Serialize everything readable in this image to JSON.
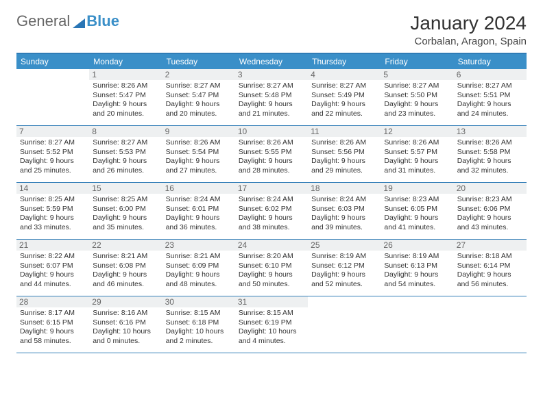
{
  "logo": {
    "text1": "General",
    "text2": "Blue"
  },
  "title": "January 2024",
  "subtitle": "Corbalan, Aragon, Spain",
  "colors": {
    "header_bg": "#3a8fc8",
    "header_text": "#ffffff",
    "border": "#2f7cb6",
    "daynum_bg": "#eef0f1",
    "daynum_text": "#666666",
    "body_text": "#333333",
    "logo_general": "#666666",
    "logo_blue": "#3a8fc8"
  },
  "day_labels": [
    "Sunday",
    "Monday",
    "Tuesday",
    "Wednesday",
    "Thursday",
    "Friday",
    "Saturday"
  ],
  "weeks": [
    [
      null,
      {
        "n": "1",
        "sr": "Sunrise: 8:26 AM",
        "ss": "Sunset: 5:47 PM",
        "d1": "Daylight: 9 hours",
        "d2": "and 20 minutes."
      },
      {
        "n": "2",
        "sr": "Sunrise: 8:27 AM",
        "ss": "Sunset: 5:47 PM",
        "d1": "Daylight: 9 hours",
        "d2": "and 20 minutes."
      },
      {
        "n": "3",
        "sr": "Sunrise: 8:27 AM",
        "ss": "Sunset: 5:48 PM",
        "d1": "Daylight: 9 hours",
        "d2": "and 21 minutes."
      },
      {
        "n": "4",
        "sr": "Sunrise: 8:27 AM",
        "ss": "Sunset: 5:49 PM",
        "d1": "Daylight: 9 hours",
        "d2": "and 22 minutes."
      },
      {
        "n": "5",
        "sr": "Sunrise: 8:27 AM",
        "ss": "Sunset: 5:50 PM",
        "d1": "Daylight: 9 hours",
        "d2": "and 23 minutes."
      },
      {
        "n": "6",
        "sr": "Sunrise: 8:27 AM",
        "ss": "Sunset: 5:51 PM",
        "d1": "Daylight: 9 hours",
        "d2": "and 24 minutes."
      }
    ],
    [
      {
        "n": "7",
        "sr": "Sunrise: 8:27 AM",
        "ss": "Sunset: 5:52 PM",
        "d1": "Daylight: 9 hours",
        "d2": "and 25 minutes."
      },
      {
        "n": "8",
        "sr": "Sunrise: 8:27 AM",
        "ss": "Sunset: 5:53 PM",
        "d1": "Daylight: 9 hours",
        "d2": "and 26 minutes."
      },
      {
        "n": "9",
        "sr": "Sunrise: 8:26 AM",
        "ss": "Sunset: 5:54 PM",
        "d1": "Daylight: 9 hours",
        "d2": "and 27 minutes."
      },
      {
        "n": "10",
        "sr": "Sunrise: 8:26 AM",
        "ss": "Sunset: 5:55 PM",
        "d1": "Daylight: 9 hours",
        "d2": "and 28 minutes."
      },
      {
        "n": "11",
        "sr": "Sunrise: 8:26 AM",
        "ss": "Sunset: 5:56 PM",
        "d1": "Daylight: 9 hours",
        "d2": "and 29 minutes."
      },
      {
        "n": "12",
        "sr": "Sunrise: 8:26 AM",
        "ss": "Sunset: 5:57 PM",
        "d1": "Daylight: 9 hours",
        "d2": "and 31 minutes."
      },
      {
        "n": "13",
        "sr": "Sunrise: 8:26 AM",
        "ss": "Sunset: 5:58 PM",
        "d1": "Daylight: 9 hours",
        "d2": "and 32 minutes."
      }
    ],
    [
      {
        "n": "14",
        "sr": "Sunrise: 8:25 AM",
        "ss": "Sunset: 5:59 PM",
        "d1": "Daylight: 9 hours",
        "d2": "and 33 minutes."
      },
      {
        "n": "15",
        "sr": "Sunrise: 8:25 AM",
        "ss": "Sunset: 6:00 PM",
        "d1": "Daylight: 9 hours",
        "d2": "and 35 minutes."
      },
      {
        "n": "16",
        "sr": "Sunrise: 8:24 AM",
        "ss": "Sunset: 6:01 PM",
        "d1": "Daylight: 9 hours",
        "d2": "and 36 minutes."
      },
      {
        "n": "17",
        "sr": "Sunrise: 8:24 AM",
        "ss": "Sunset: 6:02 PM",
        "d1": "Daylight: 9 hours",
        "d2": "and 38 minutes."
      },
      {
        "n": "18",
        "sr": "Sunrise: 8:24 AM",
        "ss": "Sunset: 6:03 PM",
        "d1": "Daylight: 9 hours",
        "d2": "and 39 minutes."
      },
      {
        "n": "19",
        "sr": "Sunrise: 8:23 AM",
        "ss": "Sunset: 6:05 PM",
        "d1": "Daylight: 9 hours",
        "d2": "and 41 minutes."
      },
      {
        "n": "20",
        "sr": "Sunrise: 8:23 AM",
        "ss": "Sunset: 6:06 PM",
        "d1": "Daylight: 9 hours",
        "d2": "and 43 minutes."
      }
    ],
    [
      {
        "n": "21",
        "sr": "Sunrise: 8:22 AM",
        "ss": "Sunset: 6:07 PM",
        "d1": "Daylight: 9 hours",
        "d2": "and 44 minutes."
      },
      {
        "n": "22",
        "sr": "Sunrise: 8:21 AM",
        "ss": "Sunset: 6:08 PM",
        "d1": "Daylight: 9 hours",
        "d2": "and 46 minutes."
      },
      {
        "n": "23",
        "sr": "Sunrise: 8:21 AM",
        "ss": "Sunset: 6:09 PM",
        "d1": "Daylight: 9 hours",
        "d2": "and 48 minutes."
      },
      {
        "n": "24",
        "sr": "Sunrise: 8:20 AM",
        "ss": "Sunset: 6:10 PM",
        "d1": "Daylight: 9 hours",
        "d2": "and 50 minutes."
      },
      {
        "n": "25",
        "sr": "Sunrise: 8:19 AM",
        "ss": "Sunset: 6:12 PM",
        "d1": "Daylight: 9 hours",
        "d2": "and 52 minutes."
      },
      {
        "n": "26",
        "sr": "Sunrise: 8:19 AM",
        "ss": "Sunset: 6:13 PM",
        "d1": "Daylight: 9 hours",
        "d2": "and 54 minutes."
      },
      {
        "n": "27",
        "sr": "Sunrise: 8:18 AM",
        "ss": "Sunset: 6:14 PM",
        "d1": "Daylight: 9 hours",
        "d2": "and 56 minutes."
      }
    ],
    [
      {
        "n": "28",
        "sr": "Sunrise: 8:17 AM",
        "ss": "Sunset: 6:15 PM",
        "d1": "Daylight: 9 hours",
        "d2": "and 58 minutes."
      },
      {
        "n": "29",
        "sr": "Sunrise: 8:16 AM",
        "ss": "Sunset: 6:16 PM",
        "d1": "Daylight: 10 hours",
        "d2": "and 0 minutes."
      },
      {
        "n": "30",
        "sr": "Sunrise: 8:15 AM",
        "ss": "Sunset: 6:18 PM",
        "d1": "Daylight: 10 hours",
        "d2": "and 2 minutes."
      },
      {
        "n": "31",
        "sr": "Sunrise: 8:15 AM",
        "ss": "Sunset: 6:19 PM",
        "d1": "Daylight: 10 hours",
        "d2": "and 4 minutes."
      },
      null,
      null,
      null
    ]
  ]
}
